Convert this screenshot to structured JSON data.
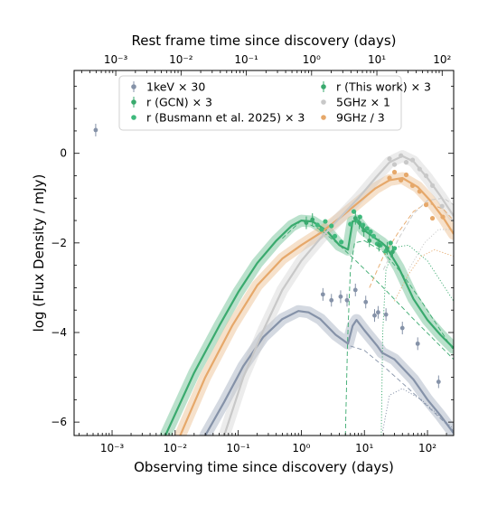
{
  "chart_data": {
    "type": "scatter",
    "xlabel": "Observing time since discovery (days)",
    "xlabel_top": "Rest frame time since discovery (days)",
    "ylabel": "log (Flux Density / mJy)",
    "x_scale": "log",
    "top_x_scale": "log",
    "xlim": [
      0.00025,
      260
    ],
    "top_xlim": [
      0.00023,
      150
    ],
    "ylim": [
      -6.3,
      1.85
    ],
    "yticks": [
      0,
      -2,
      -4,
      -6
    ],
    "ytick_labels": [
      "0",
      "−2",
      "−4",
      "−6"
    ],
    "xticks": [
      0.001,
      0.01,
      0.1,
      1,
      10,
      100
    ],
    "xtick_labels": [
      "10⁻³",
      "10⁻²",
      "10⁻¹",
      "10⁰",
      "10¹",
      "10²"
    ],
    "top_xticks": [
      0.001,
      0.01,
      0.1,
      1,
      10,
      100
    ],
    "top_xtick_labels": [
      "10⁻³",
      "10⁻²",
      "10⁻¹",
      "10⁰",
      "10¹",
      "10²"
    ],
    "legend_position": "top",
    "series": [
      {
        "name": "1keV × 30",
        "color": "#8592a8",
        "marker": "errorbar",
        "points": [
          [
            0.00055,
            0.52
          ],
          [
            2.2,
            -3.15
          ],
          [
            3.0,
            -3.28
          ],
          [
            4.2,
            -3.2
          ],
          [
            5.3,
            -3.28
          ],
          [
            7.2,
            -3.05
          ],
          [
            10.5,
            -3.32
          ],
          [
            14.5,
            -3.62
          ],
          [
            16.5,
            -3.55
          ],
          [
            22,
            -3.6
          ],
          [
            40,
            -3.9
          ],
          [
            70,
            -4.25
          ],
          [
            150,
            -5.1
          ]
        ]
      },
      {
        "name": "r (GCN) × 3",
        "color": "#3aaa6e",
        "marker": "errorbar",
        "points": [
          [
            1.2,
            -1.55
          ],
          [
            1.5,
            -1.48
          ]
        ]
      },
      {
        "name": "r (Busmann et al. 2025) × 3",
        "color": "#3fb97c",
        "marker": "dot",
        "points": [
          [
            1.8,
            -1.6
          ],
          [
            2.1,
            -1.7
          ],
          [
            2.4,
            -1.52
          ],
          [
            3.0,
            -1.62
          ],
          [
            3.4,
            -1.85
          ],
          [
            4.3,
            -1.98
          ],
          [
            6.0,
            -1.58
          ],
          [
            6.8,
            -1.3
          ],
          [
            7.5,
            -1.5
          ],
          [
            8.5,
            -1.42
          ],
          [
            9.5,
            -1.6
          ],
          [
            11,
            -1.68
          ],
          [
            12.5,
            -1.75
          ],
          [
            14,
            -1.85
          ],
          [
            16,
            -2.02
          ],
          [
            18,
            -2.05
          ],
          [
            22,
            -2.18
          ],
          [
            26,
            -2.0
          ],
          [
            30,
            -2.12
          ]
        ]
      },
      {
        "name": "r (This work) × 3",
        "color": "#3aaa6e",
        "marker": "errorbar",
        "points": [
          [
            7.2,
            -1.45
          ],
          [
            8.3,
            -1.55
          ],
          [
            9.8,
            -1.72
          ],
          [
            12,
            -1.95
          ],
          [
            17,
            -2.05
          ],
          [
            23,
            -2.12
          ],
          [
            28,
            -2.2
          ]
        ]
      },
      {
        "name": "5GHz × 1",
        "color": "#c8c8c8",
        "marker": "dot",
        "points": [
          [
            25,
            -0.12
          ],
          [
            30,
            -0.25
          ],
          [
            38,
            -0.05
          ],
          [
            46,
            -0.2
          ],
          [
            58,
            -0.15
          ],
          [
            75,
            -0.35
          ],
          [
            95,
            -0.5
          ],
          [
            120,
            -0.72
          ],
          [
            170,
            -1.18
          ]
        ]
      },
      {
        "name": "9GHz / 3",
        "color": "#e6a86a",
        "marker": "dot",
        "points": [
          [
            25,
            -0.55
          ],
          [
            30,
            -0.42
          ],
          [
            38,
            -0.6
          ],
          [
            46,
            -0.48
          ],
          [
            58,
            -0.72
          ],
          [
            75,
            -0.85
          ],
          [
            95,
            -1.15
          ],
          [
            120,
            -1.45
          ],
          [
            175,
            -1.42
          ]
        ]
      }
    ],
    "model_curves": [
      {
        "name": "r model",
        "color": "#3aaa6e",
        "points": [
          [
            0.007,
            -6.3
          ],
          [
            0.02,
            -4.9
          ],
          [
            0.05,
            -3.85
          ],
          [
            0.1,
            -3.1
          ],
          [
            0.2,
            -2.45
          ],
          [
            0.4,
            -1.95
          ],
          [
            0.7,
            -1.62
          ],
          [
            1.0,
            -1.5
          ],
          [
            1.5,
            -1.52
          ],
          [
            2.5,
            -1.72
          ],
          [
            4,
            -2.05
          ],
          [
            5.5,
            -2.15
          ],
          [
            6.5,
            -1.52
          ],
          [
            7.5,
            -1.5
          ],
          [
            10,
            -1.72
          ],
          [
            15,
            -1.9
          ],
          [
            19,
            -2.0
          ],
          [
            22,
            -2.08
          ],
          [
            35,
            -2.55
          ],
          [
            60,
            -3.25
          ],
          [
            100,
            -3.72
          ],
          [
            160,
            -4.05
          ],
          [
            260,
            -4.35
          ]
        ]
      },
      {
        "name": "1keV model",
        "color": "#8592a8",
        "points": [
          [
            0.03,
            -6.3
          ],
          [
            0.06,
            -5.55
          ],
          [
            0.12,
            -4.75
          ],
          [
            0.25,
            -4.1
          ],
          [
            0.5,
            -3.7
          ],
          [
            0.9,
            -3.52
          ],
          [
            1.3,
            -3.55
          ],
          [
            2,
            -3.7
          ],
          [
            3.5,
            -4.05
          ],
          [
            5.5,
            -4.25
          ],
          [
            6.5,
            -3.85
          ],
          [
            7.5,
            -3.72
          ],
          [
            10,
            -3.95
          ],
          [
            16,
            -4.3
          ],
          [
            19,
            -4.45
          ],
          [
            30,
            -4.6
          ],
          [
            60,
            -5.05
          ],
          [
            100,
            -5.5
          ],
          [
            160,
            -5.85
          ],
          [
            260,
            -6.25
          ]
        ]
      },
      {
        "name": "9GHz model",
        "color": "#e6a86a",
        "points": [
          [
            0.012,
            -6.3
          ],
          [
            0.03,
            -5.0
          ],
          [
            0.08,
            -3.85
          ],
          [
            0.2,
            -2.95
          ],
          [
            0.5,
            -2.35
          ],
          [
            1,
            -2.05
          ],
          [
            2,
            -1.78
          ],
          [
            4,
            -1.45
          ],
          [
            8,
            -1.1
          ],
          [
            15,
            -0.78
          ],
          [
            25,
            -0.6
          ],
          [
            40,
            -0.55
          ],
          [
            70,
            -0.75
          ],
          [
            110,
            -1.05
          ],
          [
            180,
            -1.45
          ],
          [
            260,
            -1.8
          ]
        ]
      },
      {
        "name": "5GHz model",
        "color": "#c8c8c8",
        "points": [
          [
            0.06,
            -6.3
          ],
          [
            0.12,
            -5.0
          ],
          [
            0.25,
            -3.95
          ],
          [
            0.5,
            -3.05
          ],
          [
            1,
            -2.4
          ],
          [
            2,
            -1.9
          ],
          [
            4,
            -1.45
          ],
          [
            8,
            -1.0
          ],
          [
            15,
            -0.55
          ],
          [
            25,
            -0.2
          ],
          [
            40,
            -0.06
          ],
          [
            60,
            -0.18
          ],
          [
            100,
            -0.55
          ],
          [
            160,
            -0.95
          ],
          [
            260,
            -1.4
          ]
        ]
      }
    ],
    "component_curves": [
      {
        "color": "#3aaa6e",
        "style": "dashed",
        "points": [
          [
            5.0,
            -6.3
          ],
          [
            5.4,
            -4.2
          ],
          [
            6.0,
            -2.6
          ],
          [
            7,
            -2.0
          ],
          [
            10,
            -1.95
          ],
          [
            20,
            -2.2
          ],
          [
            40,
            -2.7
          ],
          [
            80,
            -3.3
          ],
          [
            260,
            -4.4
          ]
        ]
      },
      {
        "color": "#3aaa6e",
        "style": "dotted",
        "points": [
          [
            18.5,
            -6.3
          ],
          [
            19.5,
            -4.0
          ],
          [
            22,
            -2.6
          ],
          [
            30,
            -2.1
          ],
          [
            50,
            -2.05
          ],
          [
            100,
            -2.4
          ],
          [
            260,
            -3.3
          ]
        ]
      },
      {
        "color": "#3aaa6e",
        "style": "dashed",
        "points": [
          [
            0.5,
            -1.9
          ],
          [
            1,
            -1.5
          ],
          [
            2,
            -1.7
          ],
          [
            4,
            -2.05
          ],
          [
            8,
            -2.45
          ],
          [
            20,
            -3.0
          ],
          [
            60,
            -3.7
          ],
          [
            260,
            -4.6
          ]
        ]
      },
      {
        "color": "#8592a8",
        "style": "dashed",
        "points": [
          [
            6,
            -4.3
          ],
          [
            10,
            -4.4
          ],
          [
            20,
            -4.75
          ],
          [
            50,
            -5.25
          ],
          [
            120,
            -5.75
          ],
          [
            260,
            -6.2
          ]
        ]
      },
      {
        "color": "#8592a8",
        "style": "dotted",
        "points": [
          [
            19.5,
            -6.2
          ],
          [
            25,
            -5.4
          ],
          [
            40,
            -5.25
          ],
          [
            80,
            -5.5
          ],
          [
            260,
            -6.15
          ]
        ]
      },
      {
        "color": "#e6a86a",
        "style": "dashed",
        "points": [
          [
            12,
            -3.0
          ],
          [
            20,
            -2.3
          ],
          [
            35,
            -1.75
          ],
          [
            60,
            -1.3
          ],
          [
            100,
            -1.1
          ],
          [
            180,
            -1.25
          ],
          [
            260,
            -1.5
          ]
        ]
      },
      {
        "color": "#e6a86a",
        "style": "dotted",
        "points": [
          [
            30,
            -3.3
          ],
          [
            50,
            -2.7
          ],
          [
            80,
            -2.3
          ],
          [
            130,
            -2.15
          ],
          [
            260,
            -2.3
          ]
        ]
      },
      {
        "color": "#c8c8c8",
        "style": "dashed",
        "points": [
          [
            20,
            -2.6
          ],
          [
            35,
            -1.9
          ],
          [
            60,
            -1.35
          ],
          [
            100,
            -1.05
          ],
          [
            180,
            -1.0
          ],
          [
            260,
            -1.15
          ]
        ]
      },
      {
        "color": "#c8c8c8",
        "style": "dotted",
        "points": [
          [
            50,
            -2.6
          ],
          [
            90,
            -2.0
          ],
          [
            150,
            -1.7
          ],
          [
            260,
            -1.7
          ]
        ]
      }
    ]
  },
  "legend": {
    "left": [
      {
        "text": "1keV × 30",
        "color": "#8592a8",
        "marker": "errorbar"
      },
      {
        "text": "r (GCN) × 3",
        "color": "#3aaa6e",
        "marker": "errorbar"
      },
      {
        "text": "r (Busmann et al. 2025) × 3",
        "color": "#3fb97c",
        "marker": "dot"
      }
    ],
    "right": [
      {
        "text": "r (This work) × 3",
        "color": "#3aaa6e",
        "marker": "errorbar"
      },
      {
        "text": "5GHz × 1",
        "color": "#c8c8c8",
        "marker": "dot"
      },
      {
        "text": "9GHz / 3",
        "color": "#e6a86a",
        "marker": "dot"
      }
    ]
  }
}
